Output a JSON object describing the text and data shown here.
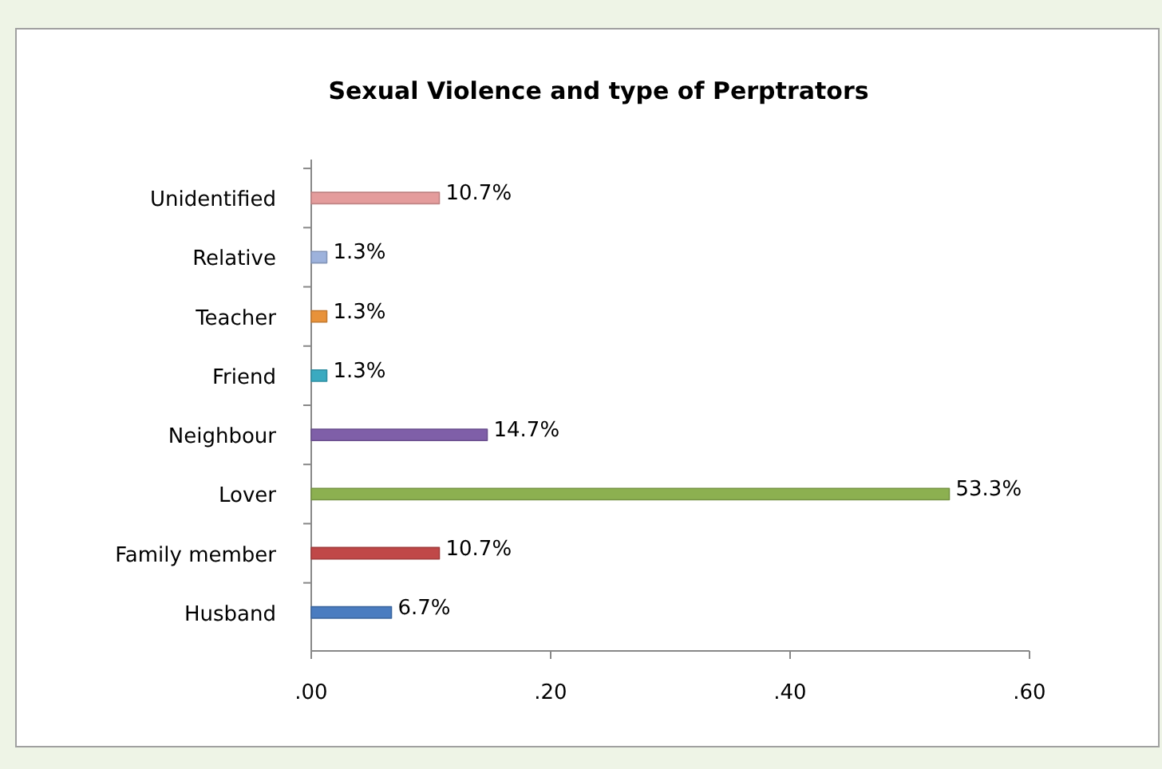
{
  "chart_data": {
    "type": "bar",
    "orientation": "horizontal",
    "title": "Sexual Violence and type of Perptrators",
    "categories": [
      "Unidentified",
      "Relative",
      "Teacher",
      "Friend",
      "Neighbour",
      "Lover",
      "Family member",
      "Husband"
    ],
    "values": [
      0.107,
      0.013,
      0.013,
      0.013,
      0.147,
      0.533,
      0.107,
      0.067
    ],
    "value_labels": [
      "10.7%",
      "1.3%",
      "1.3%",
      "1.3%",
      "14.7%",
      "53.3%",
      "10.7%",
      "6.7%"
    ],
    "colors": [
      "#e49c9c",
      "#9db2dc",
      "#e8923a",
      "#3aaac0",
      "#7f5fa8",
      "#8cb050",
      "#c04848",
      "#4a7cc0"
    ],
    "xlim": [
      0,
      0.6
    ],
    "xticks": [
      {
        "value": 0,
        "label": ".00"
      },
      {
        "value": 0.2,
        "label": ".20"
      },
      {
        "value": 0.4,
        "label": ".40"
      },
      {
        "value": 0.6,
        "label": ".60"
      }
    ]
  }
}
